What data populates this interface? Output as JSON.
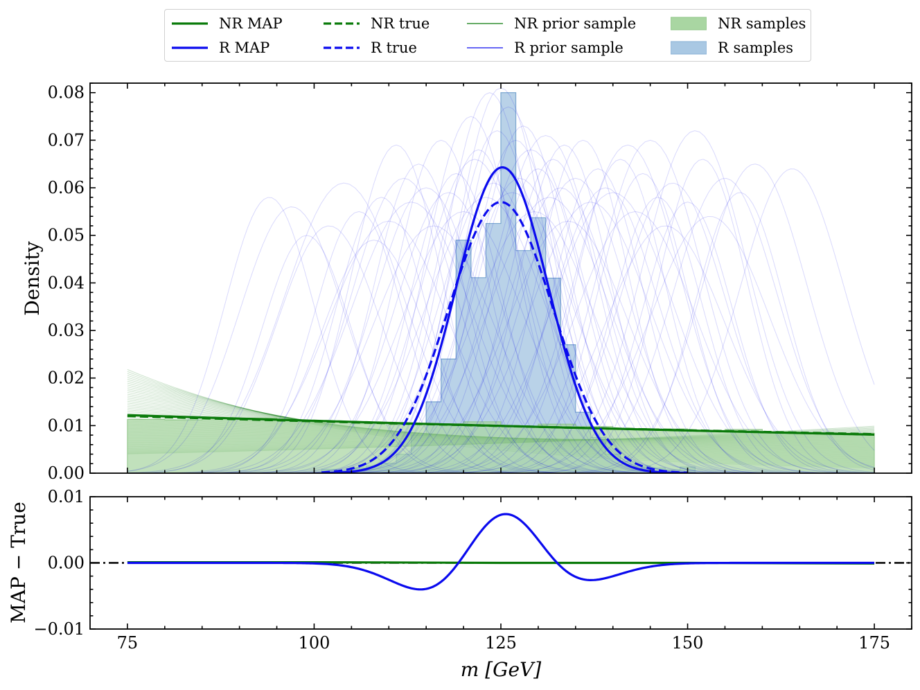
{
  "legend": {
    "items": [
      {
        "id": "nr-map",
        "label": "NR MAP",
        "style": "solid-thick",
        "color": "#0a7a0a"
      },
      {
        "id": "nr-true",
        "label": "NR true",
        "style": "dashed-thick",
        "color": "#0a7a0a"
      },
      {
        "id": "nr-prior",
        "label": "NR prior sample",
        "style": "solid-thin",
        "color": "#0a7a0a"
      },
      {
        "id": "nr-samples",
        "label": "NR samples",
        "style": "patch",
        "color": "#a9d6a2"
      },
      {
        "id": "r-map",
        "label": "R MAP",
        "style": "solid-thick",
        "color": "#0a0aee"
      },
      {
        "id": "r-true",
        "label": "R true",
        "style": "dashed-thick",
        "color": "#0a0aee"
      },
      {
        "id": "r-prior",
        "label": "R prior sample",
        "style": "solid-thin",
        "color": "#0a0aee"
      },
      {
        "id": "r-samples",
        "label": "R samples",
        "style": "patch",
        "color": "#a9c8e3"
      }
    ]
  },
  "chart_data": [
    {
      "type": "line",
      "panel": "top",
      "xlabel": "",
      "ylabel": "Density",
      "xlim": [
        70,
        180
      ],
      "ylim": [
        0.0,
        0.082
      ],
      "yticks": [
        0.0,
        0.01,
        0.02,
        0.03,
        0.04,
        0.05,
        0.06,
        0.07,
        0.08
      ],
      "ytick_labels": [
        "0.00",
        "0.01",
        "0.02",
        "0.03",
        "0.04",
        "0.05",
        "0.06",
        "0.07",
        "0.08"
      ],
      "series": [
        {
          "name": "NR MAP",
          "kind": "exponential",
          "x_range": [
            75,
            175
          ],
          "y_start": 0.0122,
          "y_end": 0.0081,
          "color": "#0a7a0a",
          "style": "solid"
        },
        {
          "name": "NR true",
          "kind": "exponential",
          "x_range": [
            75,
            175
          ],
          "y_start": 0.012,
          "y_end": 0.0082,
          "color": "#0a7a0a",
          "style": "dashed"
        },
        {
          "name": "R MAP",
          "kind": "gaussian",
          "mean": 125.2,
          "sigma": 6.2,
          "peak": 0.0643,
          "x_range": [
            101,
            150
          ],
          "color": "#0a0aee",
          "style": "solid"
        },
        {
          "name": "R true",
          "kind": "gaussian",
          "mean": 125.0,
          "sigma": 7.0,
          "peak": 0.057,
          "x_range": [
            101,
            150
          ],
          "color": "#0a0aee",
          "style": "dashed"
        }
      ],
      "histograms": [
        {
          "name": "R samples",
          "bin_edges": [
            101,
            103,
            105,
            107,
            109,
            111,
            113,
            115,
            117,
            119,
            121,
            123,
            125,
            127,
            129,
            131,
            133,
            135,
            137,
            139,
            141,
            143,
            145,
            147,
            149,
            151
          ],
          "values": [
            0.0008,
            0.0005,
            0.0011,
            0.0015,
            0.0021,
            0.004,
            0.008,
            0.015,
            0.024,
            0.049,
            0.0411,
            0.0525,
            0.08,
            0.0468,
            0.0537,
            0.041,
            0.027,
            0.0128,
            0.0075,
            0.004,
            0.0025,
            0.0015,
            0.0011,
            0.0007,
            0.0013
          ],
          "color": "#a9c8e3"
        },
        {
          "name": "NR samples",
          "bin_edges": [
            75,
            80,
            85,
            90,
            95,
            100,
            105,
            110,
            115,
            120,
            125,
            130,
            135,
            140,
            145,
            150,
            155,
            160,
            165,
            170,
            175
          ],
          "values": [
            0.0113,
            0.0112,
            0.0115,
            0.0116,
            0.011,
            0.0108,
            0.0104,
            0.0102,
            0.0104,
            0.0108,
            0.0099,
            0.0103,
            0.0098,
            0.0094,
            0.0093,
            0.009,
            0.0092,
            0.0087,
            0.0085,
            0.0084
          ],
          "color": "#a9d6a2"
        }
      ],
      "prior_samples": {
        "NR": {
          "count": 60,
          "form": "exponential",
          "color": "#0a7a0a",
          "y_at_75_range": [
            0.004,
            0.022
          ],
          "y_at_175_range": [
            0.001,
            0.01
          ]
        },
        "R": {
          "form": "gaussian",
          "color": "#0a0aee",
          "means": [
            94,
            97,
            99,
            102,
            104,
            106,
            108,
            109,
            110,
            111,
            112,
            113,
            114,
            115,
            116,
            117,
            118,
            119,
            120,
            121,
            121.5,
            122,
            123,
            123.5,
            124,
            124.5,
            125,
            125.5,
            126,
            126.5,
            127,
            127.5,
            128,
            129,
            129.5,
            130,
            131,
            131.5,
            132,
            133,
            133.5,
            134,
            135,
            136,
            137,
            138,
            139,
            140,
            141,
            142,
            143,
            144,
            145,
            146,
            147,
            148,
            150,
            151,
            152,
            153,
            155,
            157,
            159,
            164
          ],
          "peaks": [
            0.058,
            0.056,
            0.05,
            0.052,
            0.061,
            0.055,
            0.049,
            0.058,
            0.053,
            0.069,
            0.062,
            0.057,
            0.065,
            0.06,
            0.052,
            0.07,
            0.059,
            0.063,
            0.055,
            0.075,
            0.066,
            0.068,
            0.058,
            0.08,
            0.061,
            0.072,
            0.081,
            0.064,
            0.077,
            0.059,
            0.07,
            0.062,
            0.073,
            0.068,
            0.055,
            0.064,
            0.071,
            0.058,
            0.066,
            0.06,
            0.069,
            0.053,
            0.062,
            0.07,
            0.057,
            0.064,
            0.06,
            0.059,
            0.066,
            0.069,
            0.055,
            0.063,
            0.07,
            0.058,
            0.052,
            0.061,
            0.057,
            0.072,
            0.066,
            0.054,
            0.062,
            0.059,
            0.065,
            0.064
          ],
          "sigmas": [
            6,
            7,
            6,
            7,
            8,
            6,
            7,
            6,
            8,
            6,
            7,
            8,
            6,
            7,
            8,
            6,
            7,
            6,
            8,
            6,
            7,
            6,
            8,
            6,
            7,
            6,
            6,
            7,
            6,
            8,
            6,
            7,
            6,
            7,
            8,
            6,
            7,
            8,
            6,
            7,
            6,
            8,
            7,
            6,
            8,
            6,
            7,
            8,
            6,
            7,
            8,
            6,
            7,
            6,
            8,
            7,
            6,
            7,
            6,
            8,
            7,
            6,
            7,
            7
          ]
        }
      }
    },
    {
      "type": "line",
      "panel": "bottom",
      "xlabel": "m [GeV]",
      "ylabel": "MAP − True",
      "xlim": [
        70,
        180
      ],
      "ylim": [
        -0.01,
        0.01
      ],
      "xticks": [
        75,
        100,
        125,
        150,
        175
      ],
      "xtick_labels": [
        "75",
        "100",
        "125",
        "150",
        "175"
      ],
      "yticks": [
        -0.01,
        0.0,
        0.01
      ],
      "ytick_labels": [
        "−0.01",
        "0.00",
        "0.01"
      ],
      "reference_line": {
        "y": 0.0,
        "style": "dash-dot",
        "color": "#000000"
      },
      "series": [
        {
          "name": "NR MAP − True",
          "x": [
            75,
            100,
            125,
            150,
            175
          ],
          "y": [
            0.0001,
            0.0001,
            0.0,
            0.0,
            -0.0001
          ],
          "color": "#0a7a0a",
          "style": "solid"
        },
        {
          "name": "R MAP − True",
          "derived_from": [
            "R MAP",
            "R true"
          ],
          "color": "#0a0aee",
          "style": "solid"
        }
      ]
    }
  ]
}
